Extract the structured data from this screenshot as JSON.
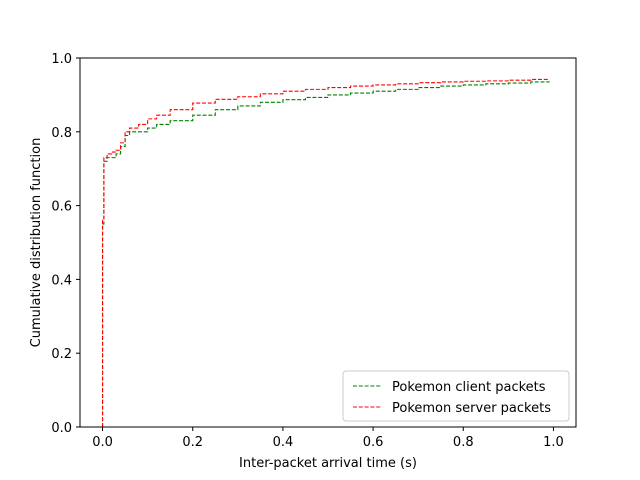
{
  "chart_data": {
    "type": "line",
    "title": "",
    "xlabel": "Inter-packet arrival time (s)",
    "ylabel": "Cumulative distribution function",
    "xlim": [
      -0.05,
      1.05
    ],
    "ylim": [
      0.0,
      1.0
    ],
    "xticks": [
      0.0,
      0.2,
      0.4,
      0.6,
      0.8,
      1.0
    ],
    "xtick_labels": [
      "0.0",
      "0.2",
      "0.4",
      "0.6",
      "0.8",
      "1.0"
    ],
    "yticks": [
      0.0,
      0.2,
      0.4,
      0.6,
      0.8,
      1.0
    ],
    "ytick_labels": [
      "0.0",
      "0.2",
      "0.4",
      "0.6",
      "0.8",
      "1.0"
    ],
    "grid": false,
    "legend_position": "lower-right",
    "series": [
      {
        "name": "Pokemon client packets",
        "color": "#008000",
        "linestyle": "dashed",
        "x": [
          0.0,
          0.0,
          0.003,
          0.01,
          0.02,
          0.03,
          0.04,
          0.05,
          0.06,
          0.08,
          0.1,
          0.12,
          0.15,
          0.2,
          0.25,
          0.3,
          0.35,
          0.4,
          0.45,
          0.5,
          0.55,
          0.6,
          0.65,
          0.7,
          0.75,
          0.8,
          0.85,
          0.9,
          0.95,
          0.99
        ],
        "y": [
          0.0,
          0.55,
          0.72,
          0.73,
          0.73,
          0.74,
          0.76,
          0.79,
          0.8,
          0.8,
          0.81,
          0.82,
          0.83,
          0.845,
          0.86,
          0.87,
          0.88,
          0.887,
          0.893,
          0.9,
          0.905,
          0.91,
          0.915,
          0.92,
          0.924,
          0.927,
          0.93,
          0.932,
          0.935,
          0.937
        ]
      },
      {
        "name": "Pokemon server packets",
        "color": "#ff0000",
        "linestyle": "dashed",
        "x": [
          0.0,
          0.0,
          0.003,
          0.01,
          0.02,
          0.03,
          0.04,
          0.05,
          0.06,
          0.08,
          0.1,
          0.12,
          0.15,
          0.2,
          0.25,
          0.3,
          0.35,
          0.4,
          0.45,
          0.5,
          0.55,
          0.6,
          0.65,
          0.7,
          0.75,
          0.8,
          0.85,
          0.9,
          0.95,
          0.99
        ],
        "y": [
          0.0,
          0.56,
          0.73,
          0.74,
          0.745,
          0.75,
          0.77,
          0.8,
          0.81,
          0.82,
          0.835,
          0.845,
          0.86,
          0.878,
          0.888,
          0.895,
          0.903,
          0.91,
          0.915,
          0.92,
          0.924,
          0.927,
          0.93,
          0.933,
          0.935,
          0.937,
          0.938,
          0.94,
          0.942,
          0.943
        ]
      }
    ]
  }
}
